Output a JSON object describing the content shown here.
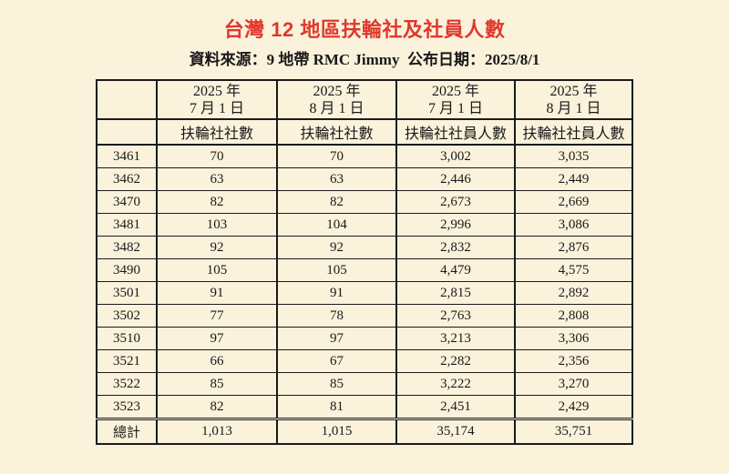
{
  "page": {
    "title": "台灣 12 地區扶輪社及社員人數",
    "subtitle": "資料來源：9 地帶 RMC Jimmy  公布日期：2025/8/1"
  },
  "colors": {
    "background": "#fbf2dc",
    "title_red": "#e0382d",
    "border": "#1a1a1a"
  },
  "table": {
    "col_headers": [
      {
        "line1": "2025 年",
        "line2": "7 月 1 日",
        "metric": "扶輪社社數"
      },
      {
        "line1": "2025 年",
        "line2": "8 月 1 日",
        "metric": "扶輪社社數"
      },
      {
        "line1": "2025 年",
        "line2": "7 月 1 日",
        "metric": "扶輪社社員人數"
      },
      {
        "line1": "2025 年",
        "line2": "8 月 1 日",
        "metric": "扶輪社社員人數"
      }
    ],
    "rows": [
      {
        "district": "3461",
        "clubs_jul": "70",
        "clubs_aug": "70",
        "members_jul": "3,002",
        "members_aug": "3,035"
      },
      {
        "district": "3462",
        "clubs_jul": "63",
        "clubs_aug": "63",
        "members_jul": "2,446",
        "members_aug": "2,449"
      },
      {
        "district": "3470",
        "clubs_jul": "82",
        "clubs_aug": "82",
        "members_jul": "2,673",
        "members_aug": "2,669"
      },
      {
        "district": "3481",
        "clubs_jul": "103",
        "clubs_aug": "104",
        "members_jul": "2,996",
        "members_aug": "3,086"
      },
      {
        "district": "3482",
        "clubs_jul": "92",
        "clubs_aug": "92",
        "members_jul": "2,832",
        "members_aug": "2,876"
      },
      {
        "district": "3490",
        "clubs_jul": "105",
        "clubs_aug": "105",
        "members_jul": "4,479",
        "members_aug": "4,575"
      },
      {
        "district": "3501",
        "clubs_jul": "91",
        "clubs_aug": "91",
        "members_jul": "2,815",
        "members_aug": "2,892"
      },
      {
        "district": "3502",
        "clubs_jul": "77",
        "clubs_aug": "78",
        "members_jul": "2,763",
        "members_aug": "2,808"
      },
      {
        "district": "3510",
        "clubs_jul": "97",
        "clubs_aug": "97",
        "members_jul": "3,213",
        "members_aug": "3,306"
      },
      {
        "district": "3521",
        "clubs_jul": "66",
        "clubs_aug": "67",
        "members_jul": "2,282",
        "members_aug": "2,356"
      },
      {
        "district": "3522",
        "clubs_jul": "85",
        "clubs_aug": "85",
        "members_jul": "3,222",
        "members_aug": "3,270"
      },
      {
        "district": "3523",
        "clubs_jul": "82",
        "clubs_aug": "81",
        "members_jul": "2,451",
        "members_aug": "2,429"
      }
    ],
    "total": {
      "label": "總計",
      "clubs_jul": "1,013",
      "clubs_aug": "1,015",
      "members_jul": "35,174",
      "members_aug": "35,751"
    }
  }
}
